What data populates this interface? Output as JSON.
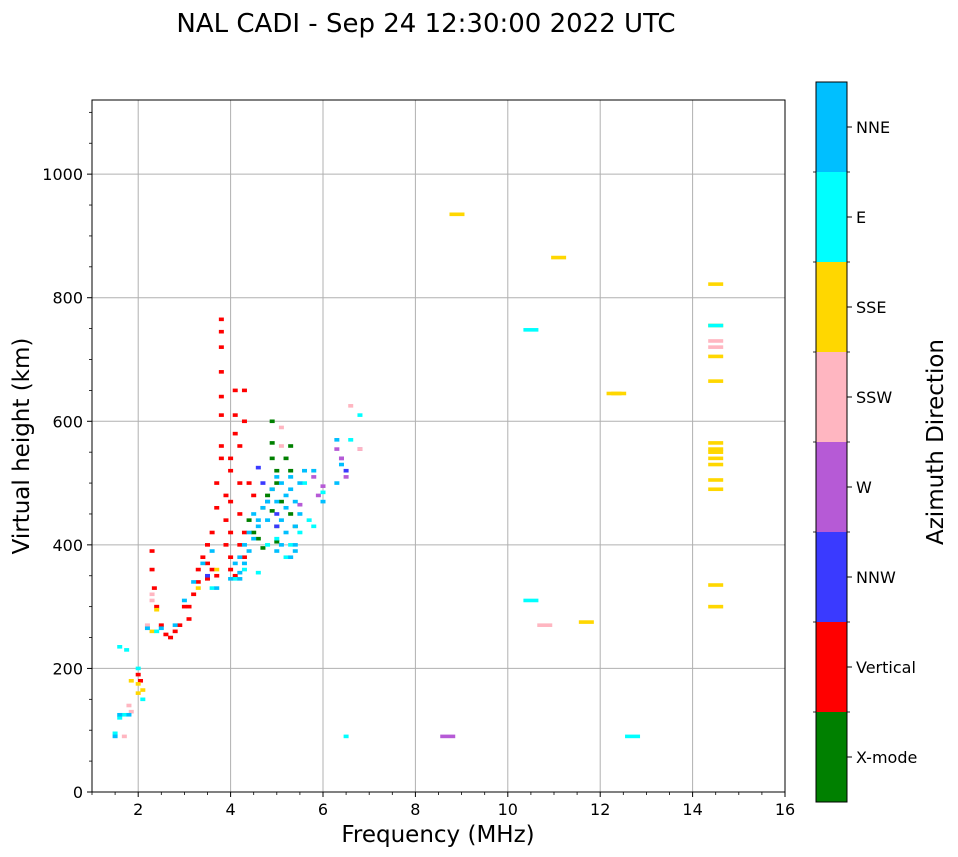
{
  "chart_data": {
    "type": "scatter",
    "title": "NAL CADI - Sep 24 12:30:00 2022 UTC",
    "xlabel": "Frequency (MHz)",
    "ylabel": "Virtual height (km)",
    "xlim": [
      1,
      16
    ],
    "ylim": [
      0,
      1120
    ],
    "xticks": [
      2,
      4,
      6,
      8,
      10,
      12,
      14,
      16
    ],
    "yticks": [
      0,
      200,
      400,
      600,
      800,
      1000
    ],
    "grid": true,
    "colorbar": {
      "label": "Azimuth Direction",
      "categories": [
        {
          "name": "X-mode",
          "color": "#008000"
        },
        {
          "name": "Vertical",
          "color": "#ff0000"
        },
        {
          "name": "NNW",
          "color": "#3a3aff"
        },
        {
          "name": "W",
          "color": "#b65ad6"
        },
        {
          "name": "SSW",
          "color": "#ffb6c1"
        },
        {
          "name": "SSE",
          "color": "#ffd700"
        },
        {
          "name": "E",
          "color": "#00ffff"
        },
        {
          "name": "NNE",
          "color": "#00bfff"
        }
      ]
    },
    "series": [
      {
        "name": "X-mode",
        "points": [
          [
            4.4,
            440
          ],
          [
            4.5,
            420
          ],
          [
            4.6,
            410
          ],
          [
            4.7,
            460
          ],
          [
            4.9,
            600
          ],
          [
            4.9,
            565
          ],
          [
            4.9,
            540
          ],
          [
            5.0,
            520
          ],
          [
            5.0,
            500
          ],
          [
            4.8,
            480
          ],
          [
            4.9,
            455
          ],
          [
            5.0,
            430
          ],
          [
            5.1,
            470
          ],
          [
            5.2,
            540
          ],
          [
            5.3,
            560
          ],
          [
            5.3,
            520
          ],
          [
            5.3,
            450
          ],
          [
            5.4,
            430
          ],
          [
            4.9,
            490
          ],
          [
            5.0,
            405
          ],
          [
            4.7,
            395
          ]
        ]
      },
      {
        "name": "Vertical",
        "points": [
          [
            2.3,
            390
          ],
          [
            2.3,
            360
          ],
          [
            2.4,
            300
          ],
          [
            2.5,
            270
          ],
          [
            2.6,
            255
          ],
          [
            2.7,
            250
          ],
          [
            2.8,
            260
          ],
          [
            2.9,
            270
          ],
          [
            3.1,
            280
          ],
          [
            3.1,
            300
          ],
          [
            3.2,
            320
          ],
          [
            3.3,
            340
          ],
          [
            3.3,
            360
          ],
          [
            3.5,
            370
          ],
          [
            3.5,
            400
          ],
          [
            3.6,
            360
          ],
          [
            3.6,
            420
          ],
          [
            3.7,
            350
          ],
          [
            3.7,
            460
          ],
          [
            3.7,
            500
          ],
          [
            3.8,
            540
          ],
          [
            3.8,
            560
          ],
          [
            3.8,
            610
          ],
          [
            3.8,
            640
          ],
          [
            3.8,
            680
          ],
          [
            3.8,
            765
          ],
          [
            3.8,
            745
          ],
          [
            3.8,
            720
          ],
          [
            3.9,
            400
          ],
          [
            3.9,
            440
          ],
          [
            3.9,
            480
          ],
          [
            4.0,
            360
          ],
          [
            4.0,
            380
          ],
          [
            4.0,
            420
          ],
          [
            4.0,
            470
          ],
          [
            4.0,
            520
          ],
          [
            4.0,
            540
          ],
          [
            4.1,
            580
          ],
          [
            4.1,
            610
          ],
          [
            4.1,
            650
          ],
          [
            4.1,
            350
          ],
          [
            4.2,
            400
          ],
          [
            4.2,
            450
          ],
          [
            4.2,
            500
          ],
          [
            4.2,
            560
          ],
          [
            4.3,
            600
          ],
          [
            4.3,
            650
          ],
          [
            4.3,
            420
          ],
          [
            4.3,
            380
          ],
          [
            2.0,
            190
          ],
          [
            2.05,
            180
          ],
          [
            2.35,
            330
          ],
          [
            3.0,
            300
          ],
          [
            3.4,
            380
          ],
          [
            3.5,
            345
          ],
          [
            4.5,
            480
          ],
          [
            4.4,
            500
          ]
        ]
      },
      {
        "name": "NNW",
        "points": [
          [
            4.6,
            525
          ],
          [
            4.7,
            500
          ],
          [
            4.8,
            470
          ],
          [
            5.0,
            430
          ],
          [
            5.0,
            450
          ],
          [
            6.4,
            540
          ],
          [
            6.5,
            520
          ],
          [
            3.5,
            350
          ]
        ]
      },
      {
        "name": "W",
        "points": [
          [
            5.8,
            510
          ],
          [
            5.9,
            480
          ],
          [
            6.0,
            495
          ],
          [
            6.3,
            555
          ],
          [
            6.4,
            540
          ],
          [
            6.5,
            510
          ],
          [
            6.8,
            555
          ],
          [
            8.7,
            90
          ],
          [
            5.5,
            465
          ]
        ]
      },
      {
        "name": "SSW",
        "points": [
          [
            2.3,
            320
          ],
          [
            2.3,
            310
          ],
          [
            1.8,
            140
          ],
          [
            1.85,
            130
          ],
          [
            5.1,
            590
          ],
          [
            5.1,
            560
          ],
          [
            6.6,
            625
          ],
          [
            6.8,
            555
          ],
          [
            10.8,
            270
          ],
          [
            14.5,
            730
          ],
          [
            14.5,
            720
          ],
          [
            2.2,
            270
          ],
          [
            1.7,
            90
          ]
        ]
      },
      {
        "name": "SSE",
        "points": [
          [
            2.0,
            160
          ],
          [
            2.1,
            165
          ],
          [
            1.85,
            180
          ],
          [
            2.3,
            260
          ],
          [
            2.4,
            295
          ],
          [
            2.0,
            175
          ],
          [
            8.9,
            935
          ],
          [
            11.1,
            865
          ],
          [
            11.7,
            275
          ],
          [
            12.3,
            645
          ],
          [
            12.4,
            645
          ],
          [
            14.5,
            822
          ],
          [
            14.5,
            755
          ],
          [
            14.5,
            705
          ],
          [
            14.5,
            665
          ],
          [
            14.5,
            565
          ],
          [
            14.5,
            555
          ],
          [
            14.5,
            550
          ],
          [
            14.5,
            540
          ],
          [
            14.5,
            530
          ],
          [
            14.5,
            505
          ],
          [
            14.5,
            490
          ],
          [
            14.5,
            335
          ],
          [
            14.5,
            300
          ],
          [
            3.7,
            360
          ],
          [
            3.3,
            330
          ]
        ]
      },
      {
        "name": "E",
        "points": [
          [
            1.6,
            235
          ],
          [
            1.75,
            230
          ],
          [
            1.5,
            95
          ],
          [
            1.6,
            120
          ],
          [
            1.7,
            125
          ],
          [
            2.0,
            200
          ],
          [
            2.1,
            150
          ],
          [
            2.4,
            260
          ],
          [
            3.6,
            330
          ],
          [
            4.1,
            345
          ],
          [
            4.3,
            360
          ],
          [
            4.6,
            355
          ],
          [
            5.2,
            380
          ],
          [
            5.3,
            400
          ],
          [
            5.5,
            420
          ],
          [
            5.6,
            500
          ],
          [
            5.7,
            440
          ],
          [
            5.8,
            430
          ],
          [
            6.0,
            485
          ],
          [
            6.6,
            570
          ],
          [
            6.8,
            610
          ],
          [
            6.5,
            90
          ],
          [
            10.5,
            748
          ],
          [
            10.5,
            310
          ],
          [
            12.7,
            90
          ],
          [
            14.5,
            755
          ],
          [
            5.0,
            410
          ],
          [
            4.8,
            400
          ]
        ]
      },
      {
        "name": "NNE",
        "points": [
          [
            1.5,
            90
          ],
          [
            1.6,
            125
          ],
          [
            1.8,
            125
          ],
          [
            2.2,
            265
          ],
          [
            2.5,
            265
          ],
          [
            2.8,
            270
          ],
          [
            3.0,
            310
          ],
          [
            3.2,
            340
          ],
          [
            3.4,
            370
          ],
          [
            3.6,
            390
          ],
          [
            3.7,
            330
          ],
          [
            4.0,
            345
          ],
          [
            4.2,
            345
          ],
          [
            4.2,
            355
          ],
          [
            4.3,
            370
          ],
          [
            4.4,
            390
          ],
          [
            4.5,
            410
          ],
          [
            4.6,
            430
          ],
          [
            4.7,
            460
          ],
          [
            4.8,
            470
          ],
          [
            4.9,
            490
          ],
          [
            5.0,
            510
          ],
          [
            5.0,
            470
          ],
          [
            5.1,
            440
          ],
          [
            5.1,
            400
          ],
          [
            5.2,
            420
          ],
          [
            5.2,
            460
          ],
          [
            5.3,
            380
          ],
          [
            5.3,
            490
          ],
          [
            5.4,
            400
          ],
          [
            5.4,
            430
          ],
          [
            5.4,
            470
          ],
          [
            5.5,
            500
          ],
          [
            5.6,
            520
          ],
          [
            5.8,
            520
          ],
          [
            6.0,
            470
          ],
          [
            6.3,
            570
          ],
          [
            6.3,
            500
          ],
          [
            6.4,
            530
          ],
          [
            4.3,
            400
          ],
          [
            4.4,
            420
          ],
          [
            4.6,
            440
          ],
          [
            4.8,
            440
          ],
          [
            5.0,
            390
          ],
          [
            5.1,
            500
          ],
          [
            5.2,
            480
          ],
          [
            5.3,
            510
          ],
          [
            5.4,
            390
          ],
          [
            5.5,
            450
          ],
          [
            4.1,
            370
          ],
          [
            4.2,
            380
          ],
          [
            4.5,
            450
          ]
        ]
      }
    ]
  }
}
